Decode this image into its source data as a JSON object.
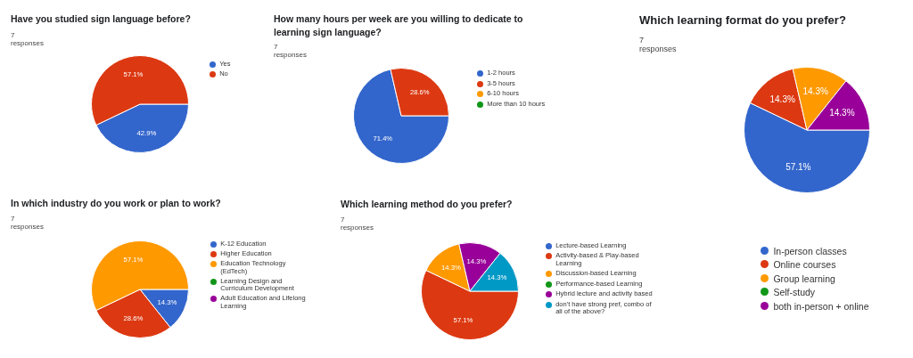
{
  "chart_data": [
    {
      "type": "pie",
      "title": "Have you studied sign language before?",
      "subtitle": "7 responses",
      "categories": [
        "Yes",
        "No"
      ],
      "values": [
        42.9,
        57.1
      ],
      "colors": [
        "#3366cc",
        "#dc3912"
      ],
      "value_labels": [
        "42.9%",
        "57.1%"
      ],
      "legend": "right"
    },
    {
      "type": "pie",
      "title": "How many hours per week are you willing to dedicate to learning sign language?",
      "subtitle": "7 responses",
      "categories": [
        "1-2 hours",
        "3-5 hours",
        "6-10 hours",
        "More than 10 hours"
      ],
      "values": [
        71.4,
        28.6,
        0,
        0
      ],
      "colors": [
        "#3366cc",
        "#dc3912",
        "#ff9900",
        "#109618"
      ],
      "value_labels": [
        "71.4%",
        "28.6%",
        null,
        null
      ],
      "legend": "right"
    },
    {
      "type": "pie",
      "title": "Which learning format do you prefer?",
      "subtitle": "7 responses",
      "categories": [
        "In-person classes",
        "Online courses",
        "Group learning",
        "Self-study",
        "both in-person + online"
      ],
      "values": [
        57.1,
        14.3,
        14.3,
        0,
        14.3
      ],
      "colors": [
        "#3366cc",
        "#dc3912",
        "#ff9900",
        "#109618",
        "#990099"
      ],
      "value_labels": [
        "57.1%",
        "14.3%",
        "14.3%",
        null,
        "14.3%"
      ],
      "legend": "bottom"
    },
    {
      "type": "pie",
      "title": "In which industry do you work or plan to work?",
      "subtitle": "7 responses",
      "categories": [
        "K-12 Education",
        "Higher Education",
        "Education Technology (EdTech)",
        "Learning Design and Curriculum Development",
        "Adult Education and Lifelong Learning"
      ],
      "values": [
        14.3,
        28.6,
        57.1,
        0,
        0
      ],
      "colors": [
        "#3366cc",
        "#dc3912",
        "#ff9900",
        "#109618",
        "#990099"
      ],
      "value_labels": [
        "14.3%",
        "28.6%",
        "57.1%",
        null,
        null
      ],
      "legend": "right"
    },
    {
      "type": "pie",
      "title": "Which learning method do you prefer?",
      "subtitle": "7 responses",
      "categories": [
        "Lecture-based Learning",
        "Activity-based & Play-based Learning",
        "Discussion-based Learning",
        "Performance-based Learning",
        "Hybrid lecture and activity based",
        "don't have strong pref, combo of all of the above?"
      ],
      "values": [
        0,
        57.1,
        14.3,
        0,
        14.3,
        14.3
      ],
      "colors": [
        "#3366cc",
        "#dc3912",
        "#ff9900",
        "#109618",
        "#990099",
        "#0099c6"
      ],
      "value_labels": [
        null,
        "57.1%",
        "14.3%",
        null,
        "14.3%",
        "14.3%"
      ],
      "legend": "right"
    }
  ]
}
